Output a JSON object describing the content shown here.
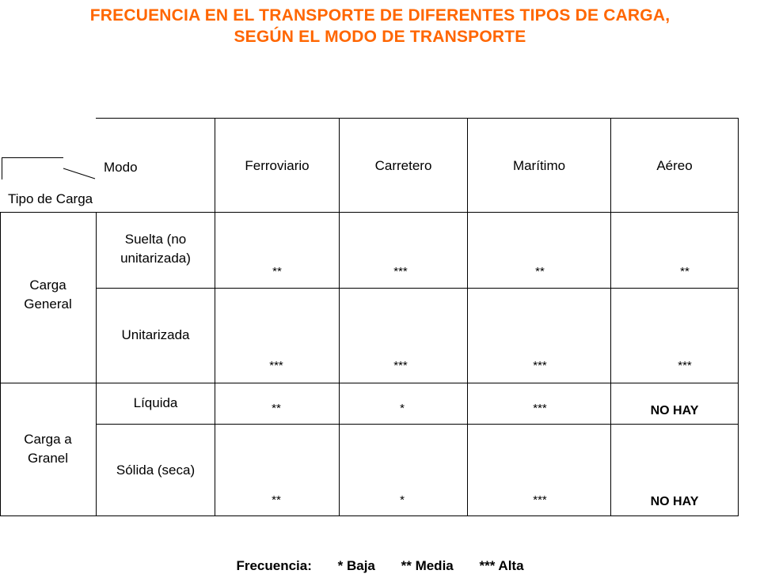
{
  "title": {
    "line1": "FRECUENCIA EN EL TRANSPORTE DE DIFERENTES TIPOS DE CARGA,",
    "line2": "SEGÚN EL MODO DE TRANSPORTE"
  },
  "header": {
    "modo": "Modo",
    "tipo_carga": "Tipo de Carga",
    "columns": [
      "Ferroviario",
      "Carretero",
      "Marítimo",
      "Aéreo"
    ]
  },
  "groups": [
    {
      "label_line1": "Carga",
      "label_line2": "General",
      "rows": [
        {
          "label_line1": "Suelta (no",
          "label_line2": "unitarizada)",
          "values": [
            "**",
            "***",
            "**",
            "**"
          ]
        },
        {
          "label_line1": "Unitarizada",
          "label_line2": "",
          "values": [
            "***",
            "***",
            "***",
            "***"
          ]
        }
      ]
    },
    {
      "label_line1": "Carga a",
      "label_line2": "Granel",
      "rows": [
        {
          "label_line1": "Líquida",
          "label_line2": "",
          "values": [
            "**",
            "*",
            "***",
            "NO HAY"
          ]
        },
        {
          "label_line1": "Sólida (seca)",
          "label_line2": "",
          "values": [
            "**",
            "*",
            "***",
            "NO HAY"
          ]
        }
      ]
    }
  ],
  "legend": {
    "label": "Frecuencia:",
    "baja": "* Baja",
    "media": "** Media",
    "alta": "*** Alta"
  },
  "colors": {
    "title": "#ff6600",
    "lines": "#000000"
  }
}
